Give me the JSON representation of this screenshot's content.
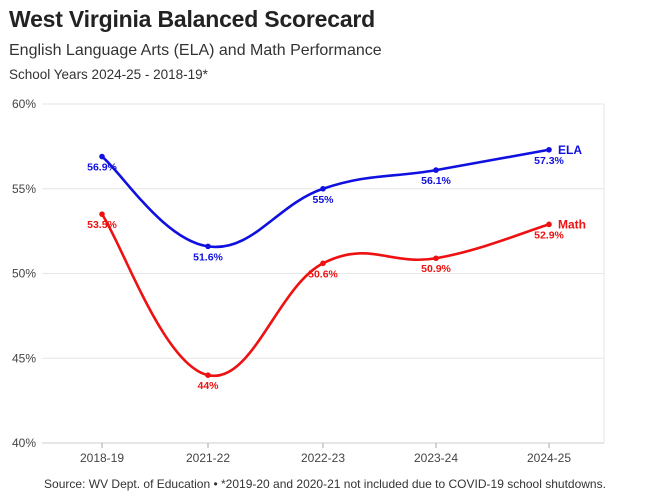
{
  "header": {
    "title": "West Virginia Balanced Scorecard",
    "subtitle": "English Language Arts (ELA) and Math Performance",
    "subtitle2": "School Years 2024-25 - 2018-19*"
  },
  "footer": {
    "source": "Source: WV Dept. of Education • *2019-20 and 2020-21 not included due to COVID-19 school shutdowns."
  },
  "chart_data": {
    "type": "line",
    "categories": [
      "2018-19",
      "2021-22",
      "2022-23",
      "2023-24",
      "2024-25"
    ],
    "series": [
      {
        "name": "ELA",
        "color": "#1010e0",
        "values": [
          56.9,
          51.6,
          55,
          56.1,
          57.3
        ],
        "labels": [
          "56.9%",
          "51.6%",
          "55%",
          "56.1%",
          "57.3%"
        ]
      },
      {
        "name": "Math",
        "color": "#ee1111",
        "values": [
          53.5,
          44,
          50.6,
          50.9,
          52.9
        ],
        "labels": [
          "53.5%",
          "44%",
          "50.6%",
          "50.9%",
          "52.9%"
        ]
      }
    ],
    "ylim": [
      40,
      60
    ],
    "yticks": [
      40,
      45,
      50,
      55,
      60
    ],
    "ytick_labels": [
      "40%",
      "45%",
      "50%",
      "55%",
      "60%"
    ],
    "grid": true,
    "legend": "inline-end-labels"
  }
}
